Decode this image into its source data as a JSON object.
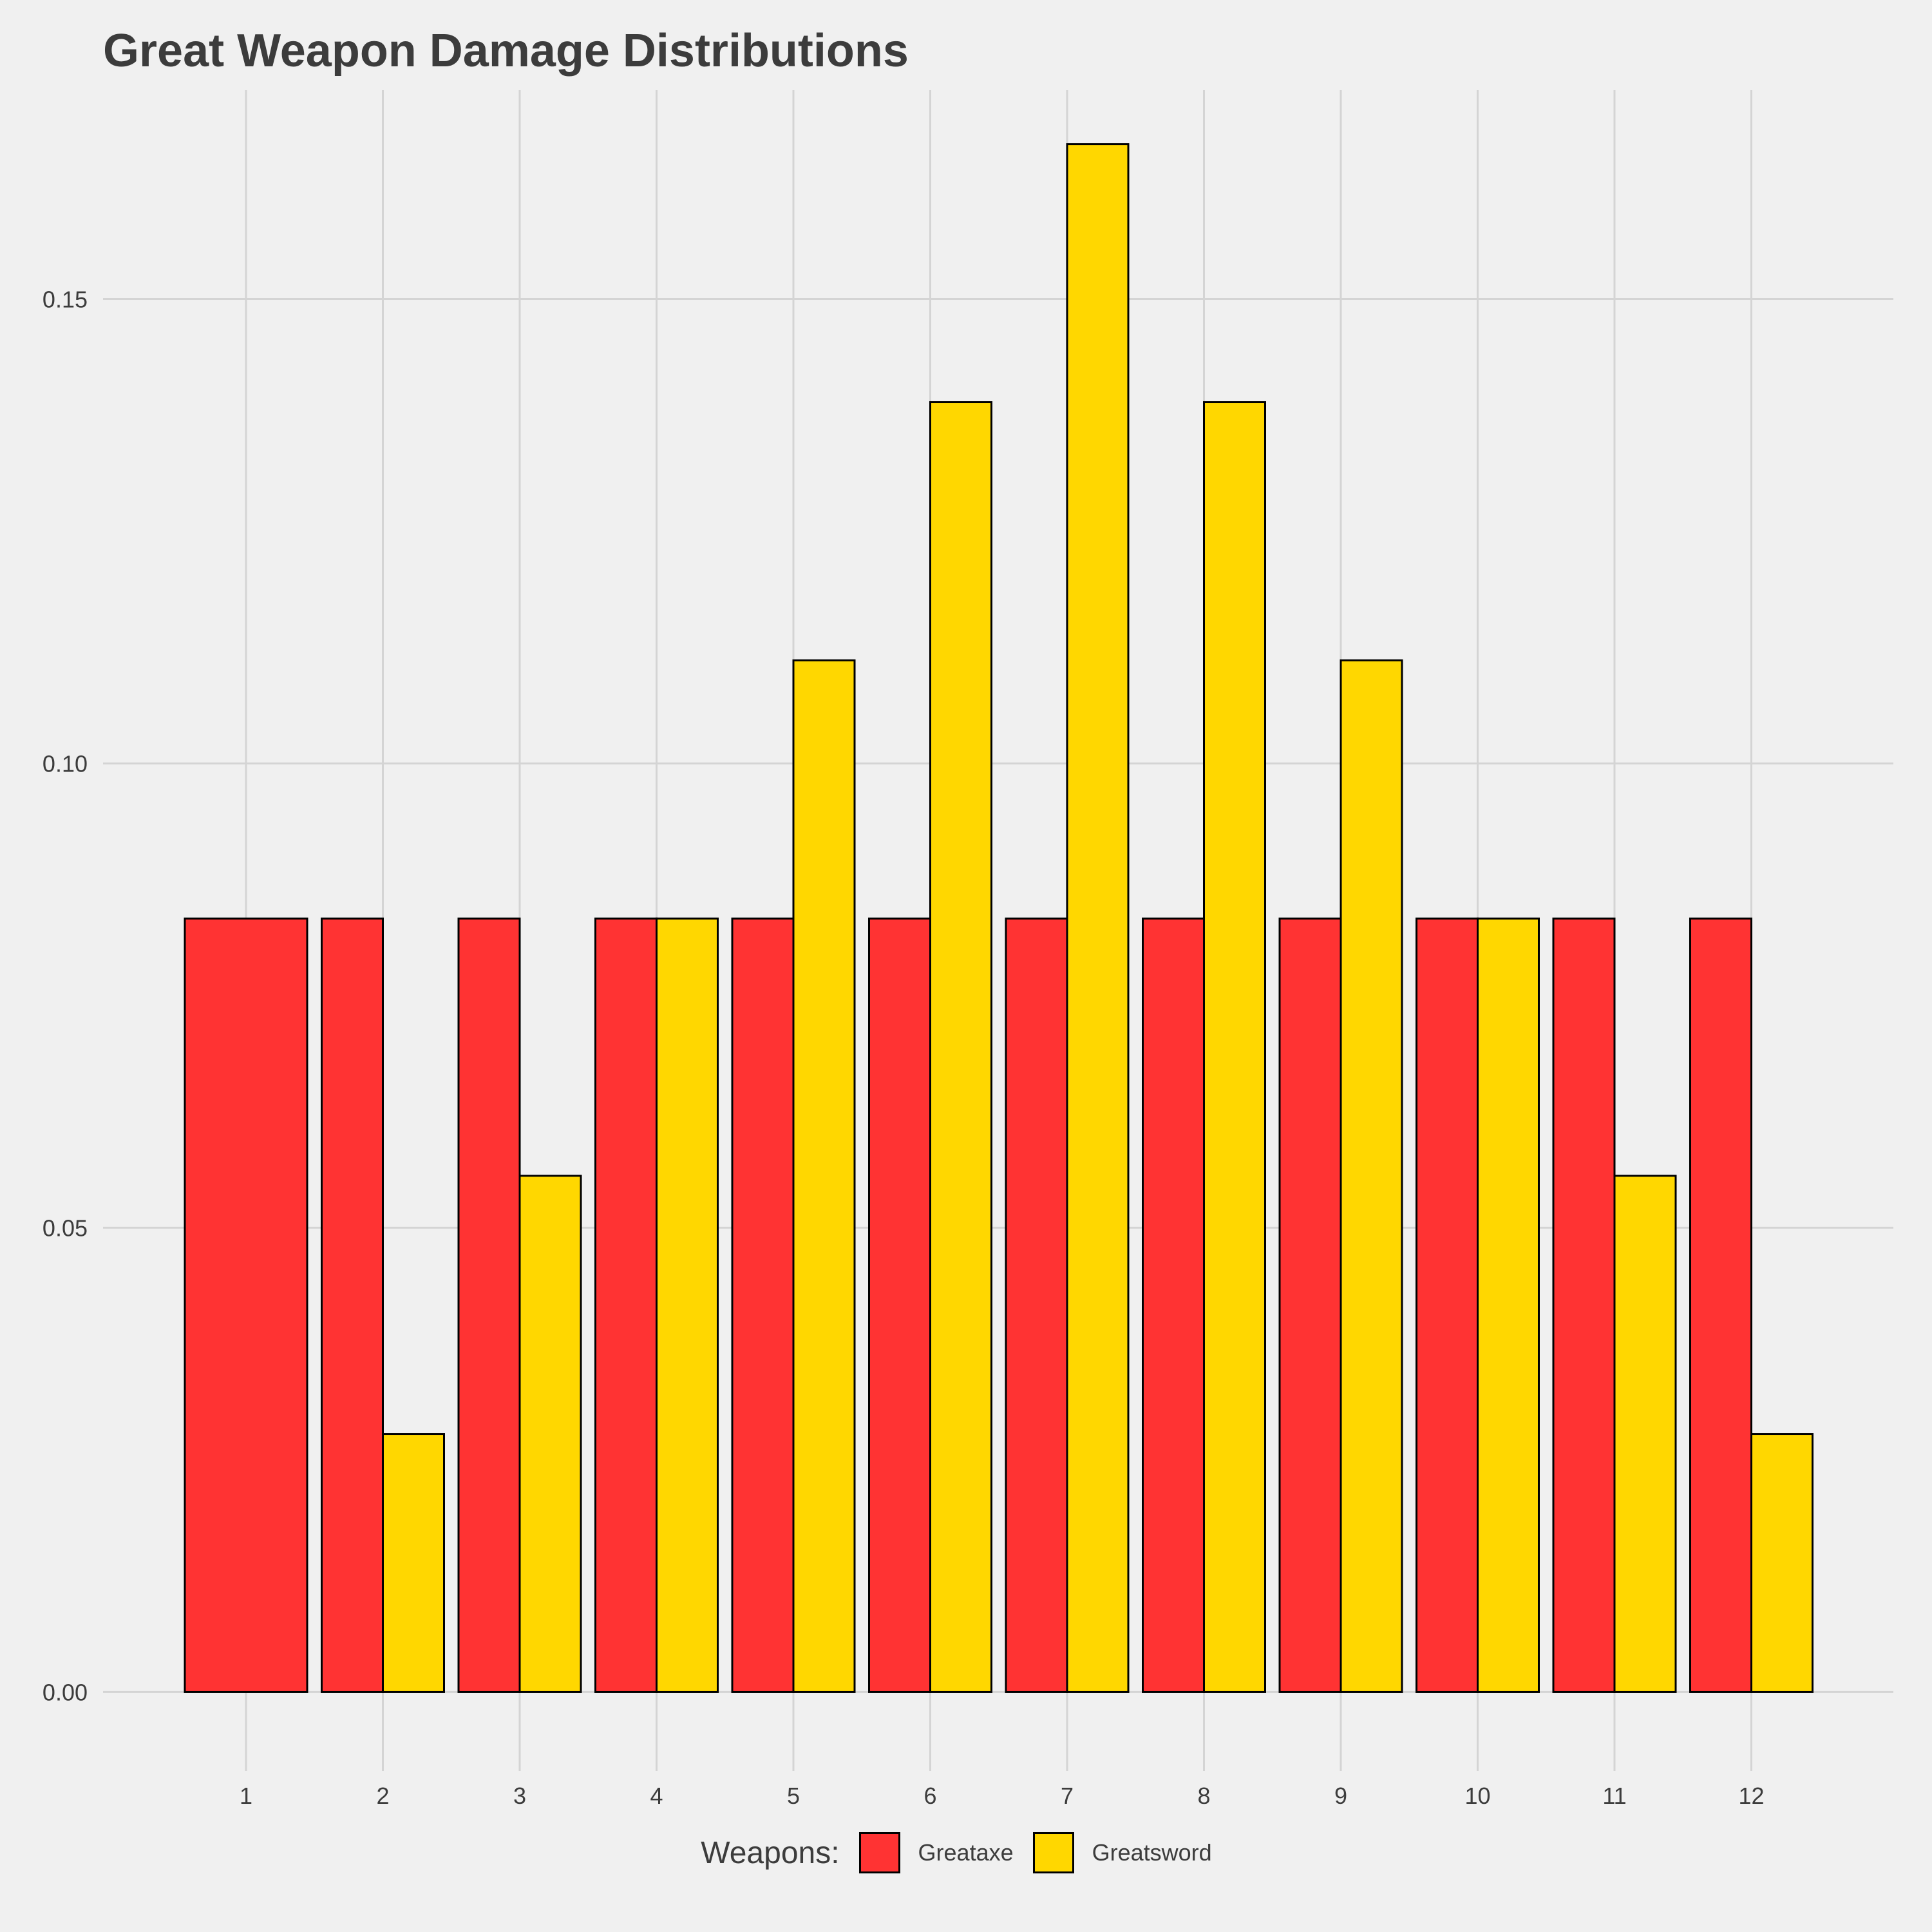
{
  "chart_data": {
    "type": "bar",
    "title": "Great Weapon Damage Distributions",
    "xlabel": "",
    "ylabel": "",
    "categories": [
      "1",
      "2",
      "3",
      "4",
      "5",
      "6",
      "7",
      "8",
      "9",
      "10",
      "11",
      "12"
    ],
    "series": [
      {
        "name": "Greataxe",
        "color": "#ff3333",
        "values": [
          0.0833,
          0.0833,
          0.0833,
          0.0833,
          0.0833,
          0.0833,
          0.0833,
          0.0833,
          0.0833,
          0.0833,
          0.0833,
          0.0833
        ]
      },
      {
        "name": "Greatsword",
        "color": "#ffd700",
        "values": [
          0,
          0.0278,
          0.0556,
          0.0833,
          0.1111,
          0.1389,
          0.1667,
          0.1389,
          0.1111,
          0.0833,
          0.0556,
          0.0278
        ]
      }
    ],
    "y_ticks": [
      "0.00",
      "0.05",
      "0.10",
      "0.15"
    ],
    "y_tick_values": [
      0,
      0.05,
      0.1,
      0.15
    ],
    "ylim": [
      -0.0085,
      0.1725
    ],
    "grid": true,
    "legend": {
      "title": "Weapons:",
      "placement": "bottom"
    }
  }
}
